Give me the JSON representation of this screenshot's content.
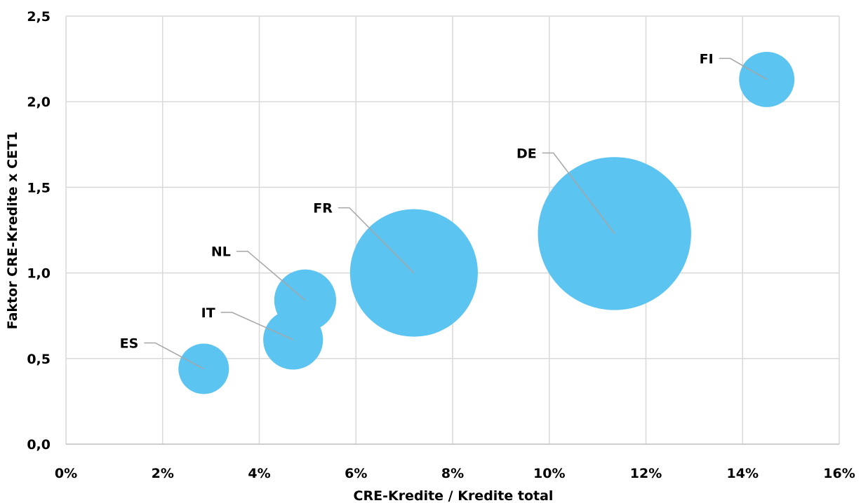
{
  "chart_data": {
    "type": "bubble",
    "title": "",
    "xlabel": "CRE-Kredite / Kredite total",
    "ylabel": "Faktor CRE-Kredite x CET1",
    "xlim": [
      0,
      16
    ],
    "ylim": [
      0,
      2.5
    ],
    "x_ticks": [
      "0%",
      "2%",
      "4%",
      "6%",
      "8%",
      "10%",
      "12%",
      "14%",
      "16%"
    ],
    "y_ticks": [
      "0,0",
      "0,5",
      "1,0",
      "1,5",
      "2,0",
      "2,5"
    ],
    "grid": true,
    "legend": "none",
    "color": "#5bc4f1",
    "points": [
      {
        "label": "ES",
        "x": 2.85,
        "y": 0.44,
        "size": 1.0
      },
      {
        "label": "IT",
        "x": 4.7,
        "y": 0.61,
        "size": 1.4
      },
      {
        "label": "NL",
        "x": 4.95,
        "y": 0.84,
        "size": 1.5
      },
      {
        "label": "FR",
        "x": 7.2,
        "y": 1.0,
        "size": 6.4
      },
      {
        "label": "DE",
        "x": 11.35,
        "y": 1.23,
        "size": 9.2
      },
      {
        "label": "FI",
        "x": 14.5,
        "y": 2.13,
        "size": 1.2
      }
    ]
  }
}
